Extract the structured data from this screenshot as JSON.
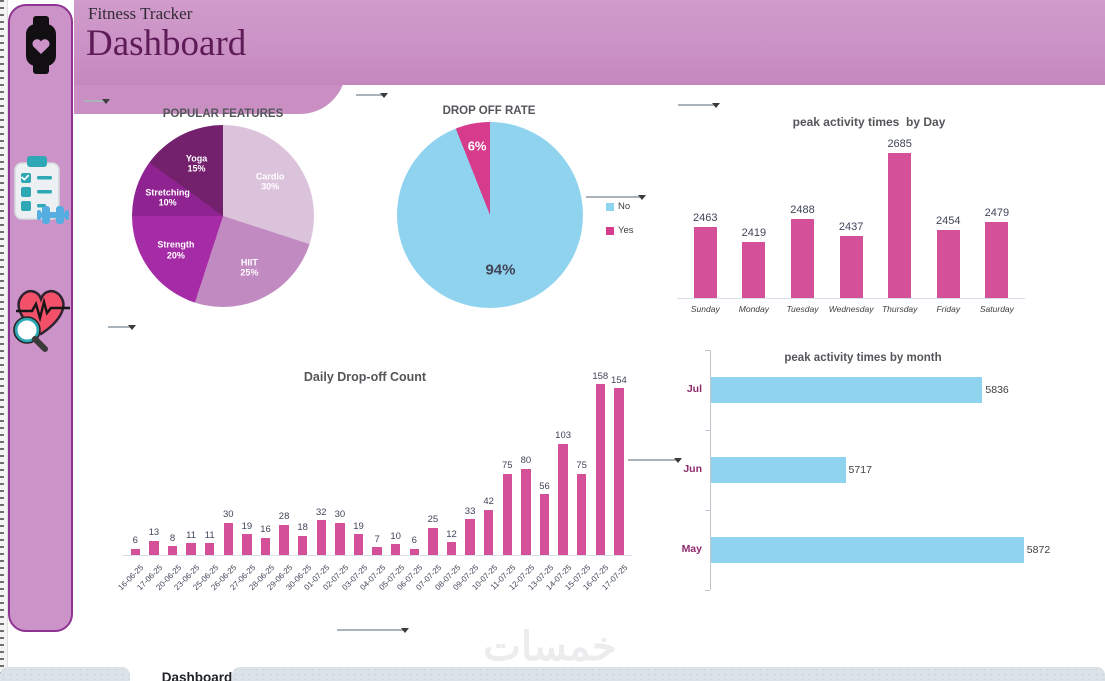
{
  "header": {
    "app_title": "Fitness Tracker",
    "page_title": "Dashboard"
  },
  "sidebar": {
    "icons": [
      {
        "name": "smartwatch-heart"
      },
      {
        "name": "workout-checklist-dumbbell"
      },
      {
        "name": "heart-rate-magnifier"
      }
    ]
  },
  "colors": {
    "header_bg": "#c98fc3",
    "sidebar_bg": "#cc93c8",
    "sidebar_border": "#8f3392",
    "accent_pink": "#d4519a",
    "accent_blue": "#90d3ef",
    "pie_yes_pink": "#d63b8c",
    "title_grey": "#54565a",
    "label_dark": "#3f4458",
    "month_label_purple": "#8e2a6e",
    "page_title_purple": "#5e1b57"
  },
  "chart_data": [
    {
      "id": "popular_features",
      "type": "pie",
      "title": "POPULAR FEATURES",
      "slices": [
        {
          "label": "Cardio",
          "value": 30,
          "pct": "30%",
          "color": "#dcc3dc",
          "label_color": "#ffffff"
        },
        {
          "label": "HIIT",
          "value": 25,
          "pct": "25%",
          "color": "#c18ac0",
          "label_color": "#ffffff"
        },
        {
          "label": "Strength",
          "value": 20,
          "pct": "20%",
          "color": "#a62ba6",
          "label_color": "#ffffff"
        },
        {
          "label": "Stretching",
          "value": 10,
          "pct": "10%",
          "color": "#8f2391",
          "label_color": "#ffffff"
        },
        {
          "label": "Yoga",
          "value": 15,
          "pct": "15%",
          "color": "#73206d",
          "label_color": "#ffffff"
        }
      ],
      "legend": "none"
    },
    {
      "id": "drop_off_rate",
      "type": "pie",
      "title": "DROP OFF RATE",
      "slices": [
        {
          "label": "No",
          "value": 94,
          "pct": "94%",
          "color": "#90d3ef",
          "label_color": "#3f4458"
        },
        {
          "label": "Yes",
          "value": 6,
          "pct": "6%",
          "color": "#d63b8c",
          "label_color": "#ffffff"
        }
      ],
      "legend": "right"
    },
    {
      "id": "peak_by_day",
      "type": "bar",
      "title": "peak activity times  by Day",
      "categories": [
        "Sunday",
        "Monday",
        "Tuesday",
        "Wednesday",
        "Thursday",
        "Friday",
        "Saturday"
      ],
      "values": [
        2463,
        2419,
        2488,
        2437,
        2685,
        2454,
        2479
      ],
      "ylim": [
        2250,
        2700
      ],
      "data_labels": true,
      "grid": false
    },
    {
      "id": "daily_drop_off",
      "type": "bar",
      "title": "Daily Drop-off Count",
      "categories": [
        "16-06-25",
        "17-06-25",
        "20-06-25",
        "23-06-25",
        "25-06-25",
        "26-06-25",
        "27-06-25",
        "28-06-25",
        "29-06-25",
        "30-06-25",
        "01-07-25",
        "02-07-25",
        "03-07-25",
        "04-07-25",
        "05-07-25",
        "06-07-25",
        "07-07-25",
        "08-07-25",
        "09-07-25",
        "10-07-25",
        "11-07-25",
        "12-07-25",
        "13-07-25",
        "14-07-25",
        "15-07-25",
        "16-07-25",
        "17-07-25"
      ],
      "values": [
        6,
        13,
        8,
        11,
        11,
        30,
        19,
        16,
        28,
        18,
        32,
        30,
        19,
        7,
        10,
        6,
        25,
        12,
        33,
        42,
        75,
        80,
        56,
        103,
        75,
        158,
        154
      ],
      "ylim": [
        0,
        160
      ],
      "data_labels": true,
      "grid": false
    },
    {
      "id": "peak_by_month",
      "type": "bar-horizontal",
      "title": "peak activity times by month",
      "categories": [
        "Jul",
        "Jun",
        "May"
      ],
      "values": [
        5836,
        5717,
        5872
      ],
      "xlim": [
        5600,
        5900
      ],
      "data_labels": true,
      "grid": false
    }
  ],
  "watermark": "خمسات",
  "sheet_tabs": {
    "active": "Dashboard"
  }
}
